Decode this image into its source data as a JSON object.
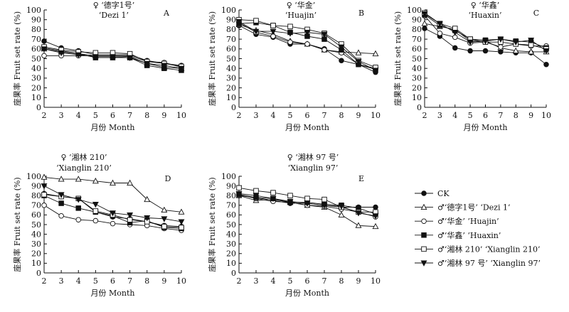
{
  "series_styles": [
    {
      "key": "ck",
      "marker": "circle",
      "fill": "#111111"
    },
    {
      "key": "dezi1",
      "marker": "triangle-up",
      "fill": "#ffffff"
    },
    {
      "key": "huajin",
      "marker": "circle",
      "fill": "#ffffff"
    },
    {
      "key": "huaxin",
      "marker": "square",
      "fill": "#111111"
    },
    {
      "key": "xianglin210",
      "marker": "square",
      "fill": "#ffffff"
    },
    {
      "key": "xianglin97",
      "marker": "triangle-down",
      "fill": "#111111"
    }
  ],
  "legend": {
    "items": [
      "CK",
      "♂‘德字1号’ ‘Dezi 1’",
      "♂‘华金’ ‘Huajin’",
      "♂‘华鑫’ ‘Huaxin’",
      "♂‘湘林 210’ ‘Xianglin 210’",
      "♂‘湘林 97 号’ ‘Xianglin 97’"
    ]
  },
  "chart_data": [
    {
      "type": "line",
      "letter": "A",
      "title_cn": "♀ ‘德字1号’",
      "title_en": "‘Dezi 1’",
      "xlabel": "月份 Month",
      "ylabel": "座果率 Fruit set rate (%)",
      "x": [
        2,
        3,
        4,
        5,
        6,
        7,
        8,
        9,
        10
      ],
      "xlim": [
        2,
        10
      ],
      "ylim": [
        0,
        100
      ],
      "yticks": [
        0,
        10,
        20,
        30,
        40,
        50,
        60,
        70,
        80,
        90,
        100
      ],
      "series": [
        {
          "values": [
            68,
            61,
            58,
            54,
            54,
            54,
            48,
            45,
            43
          ]
        },
        {
          "values": [
            60,
            57,
            55,
            53,
            53,
            52,
            45,
            41,
            40
          ]
        },
        {
          "values": [
            53,
            53,
            53,
            53,
            53,
            53,
            47,
            46,
            41
          ]
        },
        {
          "values": [
            61,
            58,
            55,
            51,
            51,
            51,
            43,
            40,
            38
          ]
        },
        {
          "values": [
            62,
            59,
            57,
            56,
            56,
            55,
            47,
            45,
            42
          ]
        },
        {
          "values": [
            60,
            56,
            54,
            52,
            52,
            51,
            45,
            43,
            40
          ]
        }
      ]
    },
    {
      "type": "line",
      "letter": "B",
      "title_cn": "♀ ‘华金’",
      "title_en": "‘Huajin’",
      "xlabel": "月份 Month",
      "ylabel": "座果率 Fruit set rate (%)",
      "x": [
        2,
        3,
        4,
        5,
        6,
        7,
        8,
        9,
        10
      ],
      "xlim": [
        2,
        10
      ],
      "ylim": [
        0,
        100
      ],
      "yticks": [
        0,
        10,
        20,
        30,
        40,
        50,
        60,
        70,
        80,
        90,
        100
      ],
      "series": [
        {
          "values": [
            84,
            75,
            72,
            65,
            65,
            60,
            48,
            44,
            36
          ]
        },
        {
          "values": [
            85,
            79,
            75,
            68,
            65,
            59,
            57,
            56,
            55
          ]
        },
        {
          "values": [
            87,
            77,
            73,
            67,
            65,
            59,
            56,
            44,
            40
          ]
        },
        {
          "values": [
            86,
            87,
            84,
            77,
            73,
            70,
            59,
            44,
            39
          ]
        },
        {
          "values": [
            90,
            89,
            84,
            83,
            80,
            76,
            65,
            48,
            41
          ]
        },
        {
          "values": [
            88,
            78,
            78,
            76,
            77,
            75,
            62,
            47,
            38
          ]
        }
      ]
    },
    {
      "type": "line",
      "letter": "C",
      "title_cn": "♀ ‘华鑫’",
      "title_en": "‘Huaxin’",
      "xlabel": "月份 Month",
      "ylabel": "座果率 Fruit set rate (%)",
      "x": [
        2,
        3,
        4,
        5,
        6,
        7,
        8,
        9,
        10
      ],
      "xlim": [
        2,
        10
      ],
      "ylim": [
        0,
        100
      ],
      "yticks": [
        0,
        10,
        20,
        30,
        40,
        50,
        60,
        70,
        80,
        90,
        100
      ],
      "series": [
        {
          "values": [
            81,
            73,
            61,
            58,
            58,
            57,
            56,
            56,
            44
          ]
        },
        {
          "values": [
            86,
            83,
            80,
            68,
            68,
            61,
            58,
            57,
            57
          ]
        },
        {
          "values": [
            94,
            76,
            72,
            66,
            67,
            62,
            65,
            63,
            63
          ]
        },
        {
          "values": [
            95,
            84,
            79,
            70,
            69,
            70,
            68,
            67,
            61
          ]
        },
        {
          "values": [
            97,
            86,
            81,
            70,
            67,
            67,
            65,
            64,
            60
          ]
        },
        {
          "values": [
            96,
            86,
            77,
            67,
            68,
            70,
            67,
            69,
            58
          ]
        }
      ]
    },
    {
      "type": "line",
      "letter": "D",
      "title_cn": "♀ ‘湘林 210’",
      "title_en": "‘Xianglin 210’",
      "xlabel": "月份 Month",
      "ylabel": "座果率 Fruit set rate (%)",
      "x": [
        2,
        3,
        4,
        5,
        6,
        7,
        8,
        9,
        10
      ],
      "xlim": [
        2,
        10
      ],
      "ylim": [
        0,
        100
      ],
      "yticks": [
        0,
        10,
        20,
        30,
        40,
        50,
        60,
        70,
        80,
        90,
        100
      ],
      "series": [
        {
          "values": [
            82,
            79,
            77,
            63,
            58,
            56,
            53,
            49,
            48
          ]
        },
        {
          "values": [
            99,
            97,
            97,
            95,
            93,
            93,
            76,
            65,
            63
          ]
        },
        {
          "values": [
            70,
            59,
            55,
            54,
            51,
            50,
            49,
            46,
            44
          ]
        },
        {
          "values": [
            80,
            72,
            67,
            63,
            59,
            52,
            54,
            47,
            46
          ]
        },
        {
          "values": [
            81,
            79,
            77,
            64,
            60,
            55,
            53,
            48,
            47
          ]
        },
        {
          "values": [
            90,
            81,
            76,
            71,
            62,
            60,
            57,
            56,
            53
          ]
        }
      ]
    },
    {
      "type": "line",
      "letter": "E",
      "title_cn": "♀ ‘湘林 97 号’",
      "title_en": "‘Xianglin 97’",
      "xlabel": "月份 Month",
      "ylabel": "座果率 Fruit set rate (%)",
      "x": [
        2,
        3,
        4,
        5,
        6,
        7,
        8,
        9,
        10
      ],
      "xlim": [
        2,
        10
      ],
      "ylim": [
        0,
        100
      ],
      "yticks": [
        0,
        10,
        20,
        30,
        40,
        50,
        60,
        70,
        80,
        90,
        100
      ],
      "series": [
        {
          "values": [
            80,
            78,
            75,
            72,
            72,
            70,
            68,
            68,
            68
          ]
        },
        {
          "values": [
            80,
            75,
            76,
            73,
            70,
            68,
            60,
            49,
            48
          ]
        },
        {
          "values": [
            81,
            77,
            74,
            73,
            70,
            69,
            66,
            63,
            58
          ]
        },
        {
          "values": [
            81,
            78,
            77,
            73,
            73,
            71,
            70,
            67,
            61
          ]
        },
        {
          "values": [
            88,
            85,
            83,
            80,
            77,
            76,
            68,
            63,
            63
          ]
        },
        {
          "values": [
            82,
            80,
            77,
            74,
            72,
            70,
            69,
            62,
            59
          ]
        }
      ]
    }
  ]
}
